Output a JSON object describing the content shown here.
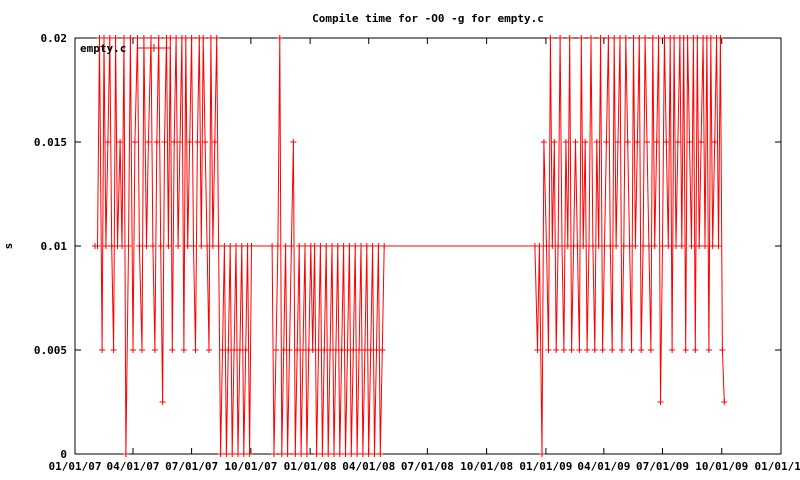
{
  "chart_data": {
    "type": "line",
    "title": "Compile time for -O0 -g for empty.c",
    "xlabel": "",
    "ylabel": "s",
    "xlim": [
      "2007-01-01",
      "2010-01-01"
    ],
    "ylim": [
      0,
      0.02
    ],
    "x_ticks": [
      "01/01/07",
      "04/01/07",
      "07/01/07",
      "10/01/07",
      "01/01/08",
      "04/01/08",
      "07/01/08",
      "10/01/08",
      "01/01/09",
      "04/01/09",
      "07/01/09",
      "10/01/09",
      "01/01/10"
    ],
    "y_ticks": [
      "0",
      "0.005",
      "0.01",
      "0.015",
      "0.02"
    ],
    "grid": false,
    "legend_position": "top-left",
    "color": "#ff0000",
    "series": [
      {
        "name": "empty.c",
        "x": [
          "2007-02-01",
          "2007-02-05",
          "2007-02-08",
          "2007-02-12",
          "2007-02-15",
          "2007-02-18",
          "2007-02-21",
          "2007-02-24",
          "2007-02-27",
          "2007-03-02",
          "2007-03-05",
          "2007-03-08",
          "2007-03-12",
          "2007-03-15",
          "2007-03-18",
          "2007-03-21",
          "2007-03-25",
          "2007-03-28",
          "2007-04-01",
          "2007-04-04",
          "2007-04-08",
          "2007-04-11",
          "2007-04-15",
          "2007-04-18",
          "2007-04-22",
          "2007-04-25",
          "2007-04-29",
          "2007-05-02",
          "2007-05-05",
          "2007-05-08",
          "2007-05-11",
          "2007-05-14",
          "2007-05-17",
          "2007-05-20",
          "2007-05-23",
          "2007-05-26",
          "2007-05-29",
          "2007-06-01",
          "2007-06-04",
          "2007-06-07",
          "2007-06-10",
          "2007-06-13",
          "2007-06-16",
          "2007-06-19",
          "2007-06-22",
          "2007-06-25",
          "2007-06-28",
          "2007-07-01",
          "2007-07-04",
          "2007-07-07",
          "2007-07-10",
          "2007-07-13",
          "2007-07-16",
          "2007-07-19",
          "2007-07-22",
          "2007-07-25",
          "2007-07-28",
          "2007-07-31",
          "2007-08-03",
          "2007-08-06",
          "2007-08-09",
          "2007-08-12",
          "2007-08-15",
          "2007-08-18",
          "2007-08-21",
          "2007-08-24",
          "2007-08-27",
          "2007-08-30",
          "2007-09-02",
          "2007-09-05",
          "2007-09-08",
          "2007-09-11",
          "2007-09-14",
          "2007-09-17",
          "2007-09-20",
          "2007-09-23",
          "2007-09-26",
          "2007-09-29",
          "2007-10-02",
          "2007-11-03",
          "2007-11-06",
          "2007-11-09",
          "2007-11-12",
          "2007-11-15",
          "2007-11-18",
          "2007-11-21",
          "2007-11-24",
          "2007-11-27",
          "2007-11-30",
          "2007-12-03",
          "2007-12-06",
          "2007-12-09",
          "2007-12-12",
          "2007-12-15",
          "2007-12-18",
          "2007-12-21",
          "2007-12-24",
          "2007-12-27",
          "2007-12-30",
          "2008-01-02",
          "2008-01-05",
          "2008-01-08",
          "2008-01-11",
          "2008-01-14",
          "2008-01-17",
          "2008-01-20",
          "2008-01-23",
          "2008-01-26",
          "2008-01-29",
          "2008-02-01",
          "2008-02-04",
          "2008-02-07",
          "2008-02-10",
          "2008-02-13",
          "2008-02-16",
          "2008-02-19",
          "2008-02-22",
          "2008-02-25",
          "2008-02-28",
          "2008-03-02",
          "2008-03-05",
          "2008-03-08",
          "2008-03-11",
          "2008-03-14",
          "2008-03-17",
          "2008-03-20",
          "2008-03-23",
          "2008-03-26",
          "2008-03-29",
          "2008-04-01",
          "2008-04-04",
          "2008-04-07",
          "2008-04-10",
          "2008-04-13",
          "2008-04-16",
          "2008-04-19",
          "2008-04-22",
          "2008-04-25",
          "2008-12-15",
          "2008-12-19",
          "2008-12-22",
          "2008-12-26",
          "2008-12-29",
          "2009-01-02",
          "2009-01-05",
          "2009-01-08",
          "2009-01-11",
          "2009-01-14",
          "2009-01-17",
          "2009-01-20",
          "2009-01-23",
          "2009-01-26",
          "2009-01-29",
          "2009-02-01",
          "2009-02-04",
          "2009-02-07",
          "2009-02-10",
          "2009-02-13",
          "2009-02-16",
          "2009-02-19",
          "2009-02-22",
          "2009-02-25",
          "2009-02-28",
          "2009-03-03",
          "2009-03-06",
          "2009-03-09",
          "2009-03-12",
          "2009-03-15",
          "2009-03-18",
          "2009-03-21",
          "2009-03-24",
          "2009-03-27",
          "2009-03-30",
          "2009-04-02",
          "2009-04-05",
          "2009-04-08",
          "2009-04-11",
          "2009-04-14",
          "2009-04-17",
          "2009-04-20",
          "2009-04-23",
          "2009-04-26",
          "2009-04-29",
          "2009-05-02",
          "2009-05-05",
          "2009-05-08",
          "2009-05-11",
          "2009-05-14",
          "2009-05-17",
          "2009-05-20",
          "2009-05-23",
          "2009-05-26",
          "2009-05-29",
          "2009-06-01",
          "2009-06-04",
          "2009-06-07",
          "2009-06-10",
          "2009-06-13",
          "2009-06-16",
          "2009-06-19",
          "2009-06-22",
          "2009-06-25",
          "2009-06-28",
          "2009-07-01",
          "2009-07-04",
          "2009-07-07",
          "2009-07-10",
          "2009-07-13",
          "2009-07-16",
          "2009-07-19",
          "2009-07-22",
          "2009-07-25",
          "2009-07-28",
          "2009-07-31",
          "2009-08-03",
          "2009-08-06",
          "2009-08-09",
          "2009-08-12",
          "2009-08-15",
          "2009-08-18",
          "2009-08-21",
          "2009-08-24",
          "2009-08-27",
          "2009-08-30",
          "2009-09-02",
          "2009-09-05",
          "2009-09-08",
          "2009-09-11",
          "2009-09-14",
          "2009-09-17",
          "2009-09-20",
          "2009-09-23",
          "2009-09-26",
          "2009-09-29",
          "2009-10-02",
          "2009-10-05"
        ],
        "values": [
          0.01,
          0.01,
          0.02,
          0.005,
          0.02,
          0.01,
          0.015,
          0.02,
          0.01,
          0.005,
          0.02,
          0.01,
          0.015,
          0.01,
          0.02,
          0,
          0.01,
          0.02,
          0.005,
          0.015,
          0.02,
          0.01,
          0.005,
          0.02,
          0.01,
          0.015,
          0.02,
          0.01,
          0.005,
          0.015,
          0.02,
          0.01,
          0.0025,
          0.015,
          0.02,
          0.01,
          0.02,
          0.005,
          0.015,
          0.02,
          0.01,
          0.015,
          0.02,
          0.005,
          0.02,
          0.01,
          0.015,
          0.02,
          0.01,
          0.005,
          0.015,
          0.02,
          0.01,
          0.02,
          0.015,
          0.01,
          0.005,
          0.02,
          0.01,
          0.015,
          0.02,
          0.01,
          0,
          0.005,
          0.01,
          0,
          0.005,
          0.01,
          0,
          0.005,
          0.01,
          0,
          0.005,
          0.01,
          0,
          0.005,
          0.01,
          0,
          0.01,
          0.01,
          0,
          0.005,
          0.01,
          0.02,
          0,
          0.005,
          0.01,
          0,
          0.005,
          0.01,
          0.015,
          0,
          0.005,
          0.01,
          0,
          0.005,
          0.01,
          0,
          0.005,
          0.01,
          0.005,
          0.01,
          0,
          0.005,
          0.01,
          0,
          0.005,
          0.01,
          0,
          0.005,
          0.01,
          0,
          0.005,
          0.01,
          0,
          0.005,
          0.01,
          0,
          0.005,
          0.01,
          0,
          0.005,
          0.01,
          0,
          0.005,
          0.01,
          0,
          0.005,
          0.01,
          0,
          0.005,
          0.01,
          0,
          0.005,
          0.01,
          0,
          0.005,
          0.01,
          0.01,
          0.005,
          0.01,
          0,
          0.015,
          0.01,
          0.005,
          0.02,
          0.01,
          0.015,
          0.005,
          0.01,
          0.02,
          0.01,
          0.005,
          0.015,
          0.01,
          0.02,
          0.005,
          0.01,
          0.015,
          0.01,
          0.005,
          0.02,
          0.01,
          0.015,
          0.005,
          0.01,
          0.02,
          0.01,
          0.005,
          0.015,
          0.01,
          0.02,
          0.005,
          0.01,
          0.015,
          0.02,
          0.01,
          0.005,
          0.02,
          0.01,
          0.015,
          0.02,
          0.005,
          0.01,
          0.02,
          0.015,
          0.01,
          0.005,
          0.02,
          0.01,
          0.015,
          0.02,
          0.005,
          0.01,
          0.02,
          0.015,
          0.01,
          0.005,
          0.02,
          0.01,
          0.015,
          0.02,
          0.0025,
          0.01,
          0.02,
          0.015,
          0.01,
          0.02,
          0.005,
          0.02,
          0.01,
          0.015,
          0.02,
          0.01,
          0.02,
          0.005,
          0.02,
          0.015,
          0.01,
          0.02,
          0.005,
          0.02,
          0.01,
          0.015,
          0.02,
          0.01,
          0.02,
          0.005,
          0.02,
          0.01,
          0.015,
          0.02,
          0.01,
          0.02,
          0.005,
          0.0025
        ]
      }
    ]
  }
}
